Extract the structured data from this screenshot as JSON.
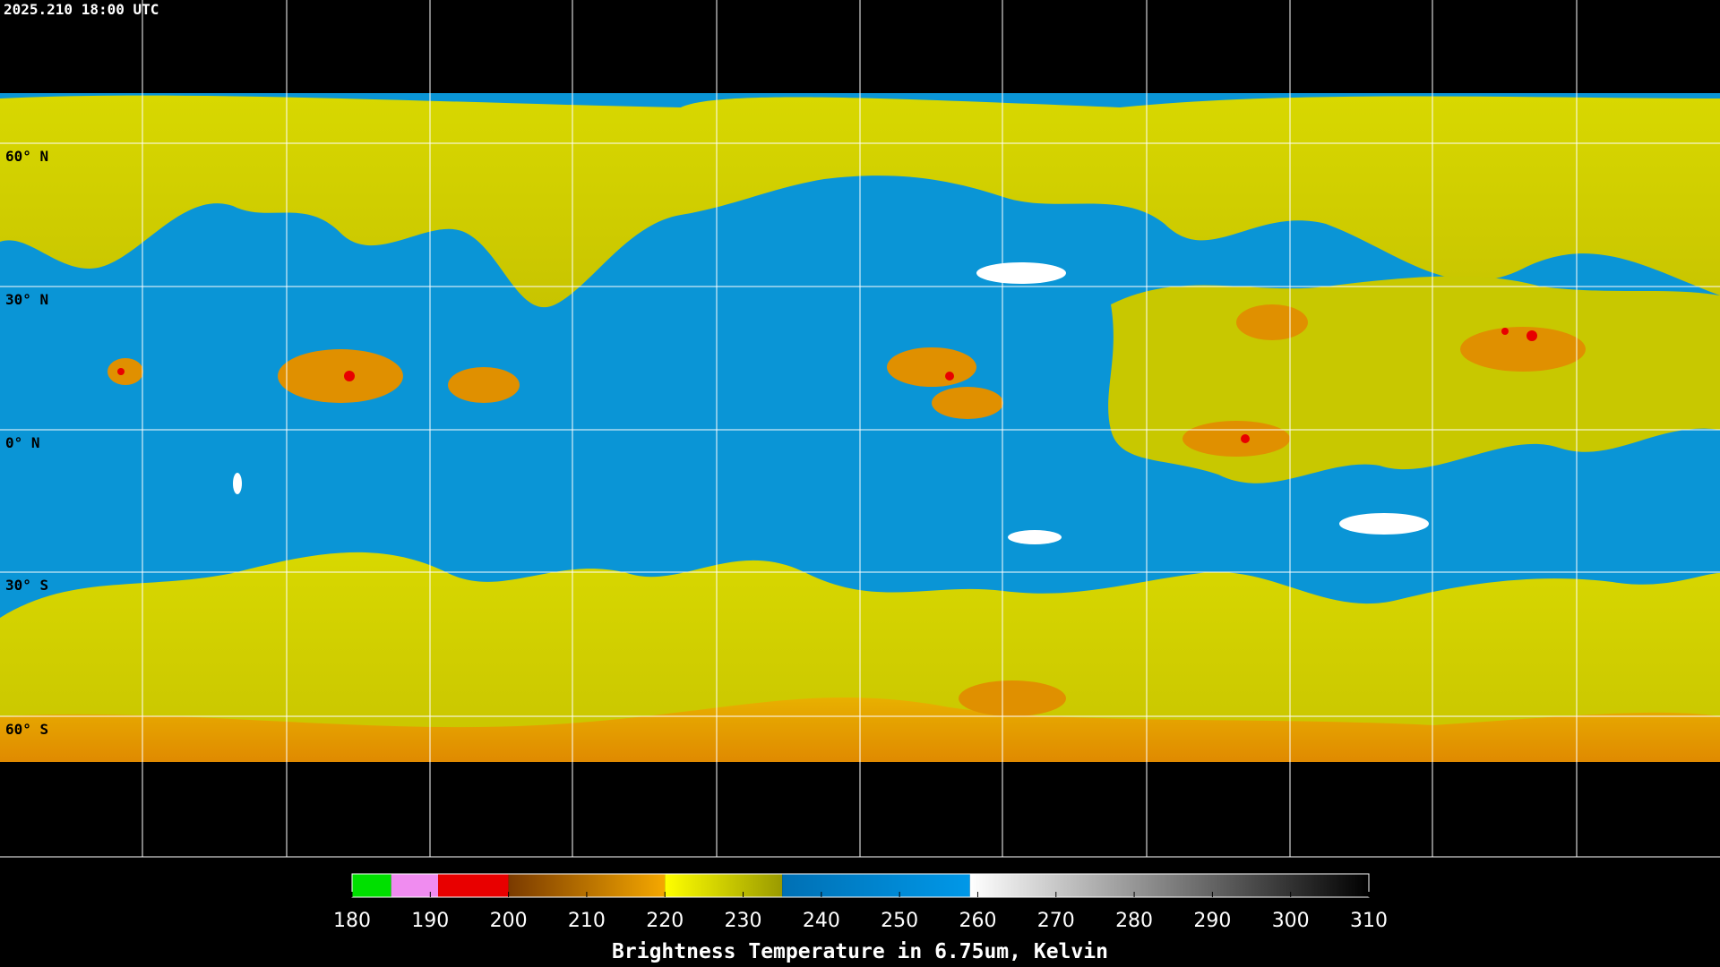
{
  "header": {
    "title": "2025.210 18:00 UTC"
  },
  "map": {
    "lat_labels": [
      "60° N",
      "30° N",
      "0° N",
      "30° S",
      "60° S"
    ]
  },
  "colorbar": {
    "range": [
      180,
      310
    ],
    "ticks": [
      180,
      190,
      200,
      210,
      220,
      230,
      240,
      250,
      260,
      270,
      280,
      290,
      300,
      310
    ],
    "segments": [
      {
        "from": 180,
        "to": 185,
        "colors": [
          "#00e000",
          "#00e000"
        ]
      },
      {
        "from": 185,
        "to": 191,
        "colors": [
          "#f08cf0",
          "#f08cf0"
        ]
      },
      {
        "from": 191,
        "to": 200,
        "colors": [
          "#e80000",
          "#e80000"
        ]
      },
      {
        "from": 200,
        "to": 220,
        "colors": [
          "#7a3a00",
          "#f5a800"
        ]
      },
      {
        "from": 220,
        "to": 235,
        "colors": [
          "#ffff00",
          "#9a9a00"
        ]
      },
      {
        "from": 235,
        "to": 259,
        "colors": [
          "#0070b4",
          "#0098e8"
        ]
      },
      {
        "from": 259,
        "to": 310,
        "colors": [
          "#ffffff",
          "#000000"
        ]
      }
    ],
    "label": "Brightness Temperature in 6.75um, Kelvin"
  }
}
